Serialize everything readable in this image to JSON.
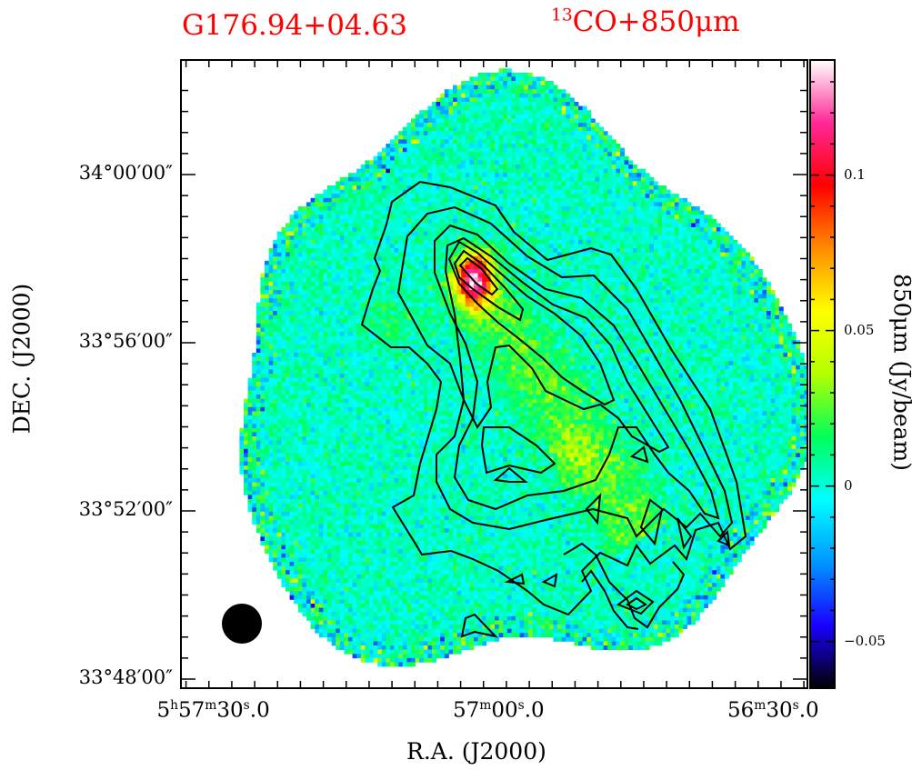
{
  "chart_data": {
    "type": "heatmap",
    "title_left": "G176.94+04.63",
    "title_right": {
      "sup": "13",
      "main": "CO+850μm"
    },
    "xlabel": "R.A.  (J2000)",
    "ylabel": "DEC.  (J2000)",
    "colorbar_label": "850μm  (Jy/beam)",
    "x_ticks": [
      {
        "value_s": 30,
        "h": "5",
        "m": "57",
        "s": "30",
        "frac": "0"
      },
      {
        "value_s": 0,
        "h": "",
        "m": "57",
        "s": "00",
        "frac": "0"
      },
      {
        "value_s": -30,
        "h": "",
        "m": "56",
        "s": "30",
        "frac": "0"
      }
    ],
    "y_ticks": [
      {
        "value_arcmin": 0,
        "label": "34°00′00″"
      },
      {
        "value_arcmin": -4,
        "label": "33°56′00″"
      },
      {
        "value_arcmin": -8,
        "label": "33°52′00″"
      },
      {
        "value_arcmin": -12,
        "label": "33°48′00″"
      }
    ],
    "colorbar": {
      "range": [
        -0.065,
        0.137
      ],
      "ticks": [
        {
          "value": -0.05,
          "label": "−0.05"
        },
        {
          "value": 0,
          "label": "0"
        },
        {
          "value": 0.05,
          "label": "0.05"
        },
        {
          "value": 0.1,
          "label": "0.1"
        }
      ],
      "colors": [
        "#000000",
        "#1a00ff",
        "#0096ff",
        "#00ffff",
        "#00ff5a",
        "#b4ff00",
        "#ffff00",
        "#ff8c00",
        "#ff0000",
        "#ff2896",
        "#ffffff"
      ]
    },
    "peak_value_jy_per_beam": 0.13,
    "background_value_jy_per_beam": 0.0,
    "contours": "13CO integrated intensity (black)",
    "beam": "filled circle (bottom-left)"
  }
}
